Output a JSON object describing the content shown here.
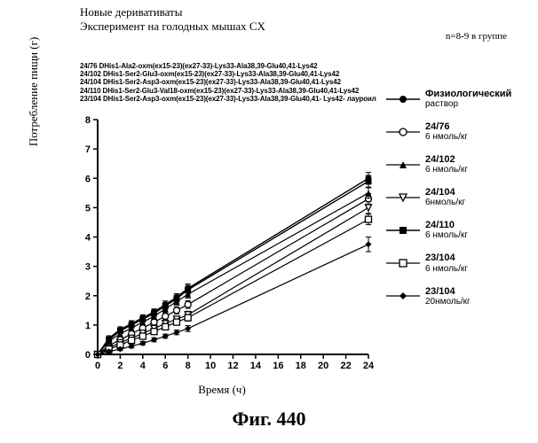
{
  "title_line1": "Новые деривативаты",
  "title_line2": "Эксперимент на голодных мышах CX",
  "group_note": "n=8-9 в группе",
  "peptide_lines": [
    "24/76 DHis1-Ala2-oxm(ex15-23)(ex27-33)-Lys33-Ala38,39-Glu40,41-Lys42",
    "24/102 DHis1-Ser2-Glu3-oxm(ex15-23)(ex27-33)-Lys33-Ala38,39-Glu40,41-Lys42",
    "24/104 DHis1-Ser2-Asp3-oxm(ex15-23)(ex27-33)-Lys33-Ala38,39-Glu40,41-Lys42",
    "24/110 DHis1-Ser2-Glu3-Val18-oxm(ex15-23)(ex27-33)-Lys33-Ala38,39-Glu40,41-Lys42",
    "23/104 DHis1-Ser2-Asp3-oxm(ex15-23)(ex27-33)-Lys33-Ala38,39-Glu40,41- Lys42- лауроил"
  ],
  "y_axis_label": "Потребление пищи (г)",
  "x_axis_label": "Время (ч)",
  "fig_caption": "Фиг. 440",
  "chart": {
    "type": "line-scatter",
    "xlim": [
      0,
      24
    ],
    "ylim": [
      0,
      8
    ],
    "xticks": [
      0,
      2,
      4,
      6,
      8,
      10,
      12,
      14,
      16,
      18,
      20,
      22,
      24
    ],
    "yticks": [
      0,
      1,
      2,
      3,
      4,
      5,
      6,
      7,
      8
    ],
    "background": "#ffffff",
    "axis_color": "#000000",
    "axis_width": 2,
    "tick_len": 5,
    "error_bar_halfwidth": 0.25,
    "series": [
      {
        "id": "saline",
        "label1": "Физиологический",
        "label2": "раствор",
        "marker": "filled-circle",
        "marker_size": 5,
        "color": "#000000",
        "line_width": 1.4,
        "x": [
          0,
          1,
          2,
          3,
          4,
          5,
          6,
          7,
          8,
          24
        ],
        "y": [
          0.0,
          0.55,
          0.85,
          1.05,
          1.25,
          1.45,
          1.7,
          1.95,
          2.25,
          6.0
        ],
        "err": [
          0.0,
          0.08,
          0.09,
          0.1,
          0.1,
          0.1,
          0.12,
          0.12,
          0.15,
          0.2
        ]
      },
      {
        "id": "24_76",
        "label1": "24/76",
        "label2": "6 нмоль/кг",
        "marker": "open-circle",
        "marker_size": 5,
        "color": "#000000",
        "line_width": 1.2,
        "x": [
          0,
          1,
          2,
          3,
          4,
          5,
          6,
          7,
          8,
          24
        ],
        "y": [
          0.0,
          0.3,
          0.5,
          0.7,
          0.9,
          1.1,
          1.3,
          1.5,
          1.7,
          5.3
        ],
        "err": [
          0.0,
          0.07,
          0.08,
          0.09,
          0.1,
          0.1,
          0.12,
          0.12,
          0.13,
          0.18
        ]
      },
      {
        "id": "24_102",
        "label1": "24/102",
        "label2": "6 нмоль/кг",
        "marker": "filled-triangle-up",
        "marker_size": 5,
        "color": "#000000",
        "line_width": 1.2,
        "x": [
          0,
          1,
          2,
          3,
          4,
          5,
          6,
          7,
          8,
          24
        ],
        "y": [
          0.0,
          0.45,
          0.7,
          0.9,
          1.1,
          1.3,
          1.55,
          1.8,
          2.05,
          5.5
        ],
        "err": [
          0.0,
          0.07,
          0.08,
          0.09,
          0.1,
          0.1,
          0.12,
          0.12,
          0.13,
          0.18
        ]
      },
      {
        "id": "24_104",
        "label1": "24/104",
        "label2": "6нмоль/кг",
        "marker": "open-triangle-down",
        "marker_size": 5,
        "color": "#000000",
        "line_width": 1.2,
        "x": [
          0,
          1,
          2,
          3,
          4,
          5,
          6,
          7,
          8,
          24
        ],
        "y": [
          0.0,
          0.22,
          0.4,
          0.55,
          0.72,
          0.88,
          1.05,
          1.2,
          1.35,
          5.0
        ],
        "err": [
          0.0,
          0.07,
          0.07,
          0.08,
          0.08,
          0.09,
          0.1,
          0.1,
          0.12,
          0.2
        ]
      },
      {
        "id": "24_110",
        "label1": "24/110",
        "label2": "6 нмоль/кг",
        "marker": "filled-square",
        "marker_size": 5,
        "color": "#000000",
        "line_width": 1.4,
        "x": [
          0,
          1,
          2,
          3,
          4,
          5,
          6,
          7,
          8,
          24
        ],
        "y": [
          0.0,
          0.5,
          0.8,
          1.0,
          1.2,
          1.4,
          1.65,
          1.9,
          2.2,
          5.9
        ],
        "err": [
          0.0,
          0.08,
          0.09,
          0.1,
          0.1,
          0.1,
          0.12,
          0.12,
          0.15,
          0.2
        ]
      },
      {
        "id": "23_104_6",
        "label1": "23/104",
        "label2": "6 нмоль/кг",
        "marker": "open-square",
        "marker_size": 5,
        "color": "#000000",
        "line_width": 1.2,
        "x": [
          0,
          1,
          2,
          3,
          4,
          5,
          6,
          7,
          8,
          24
        ],
        "y": [
          0.0,
          0.18,
          0.32,
          0.48,
          0.62,
          0.78,
          0.94,
          1.1,
          1.25,
          4.6
        ],
        "err": [
          0.0,
          0.06,
          0.07,
          0.07,
          0.08,
          0.08,
          0.09,
          0.1,
          0.11,
          0.18
        ]
      },
      {
        "id": "23_104_20",
        "label1": "23/104",
        "label2": "20нмоль/кг",
        "marker": "filled-diamond",
        "marker_size": 5,
        "color": "#000000",
        "line_width": 1.2,
        "x": [
          0,
          1,
          2,
          3,
          4,
          5,
          6,
          7,
          8,
          24
        ],
        "y": [
          0.0,
          0.1,
          0.18,
          0.28,
          0.38,
          0.5,
          0.62,
          0.75,
          0.88,
          3.75
        ],
        "err": [
          0.0,
          0.05,
          0.05,
          0.06,
          0.06,
          0.07,
          0.07,
          0.08,
          0.1,
          0.25
        ]
      }
    ]
  },
  "legend_order": [
    "saline",
    "24_76",
    "24_102",
    "24_104",
    "24_110",
    "23_104_6",
    "23_104_20"
  ]
}
